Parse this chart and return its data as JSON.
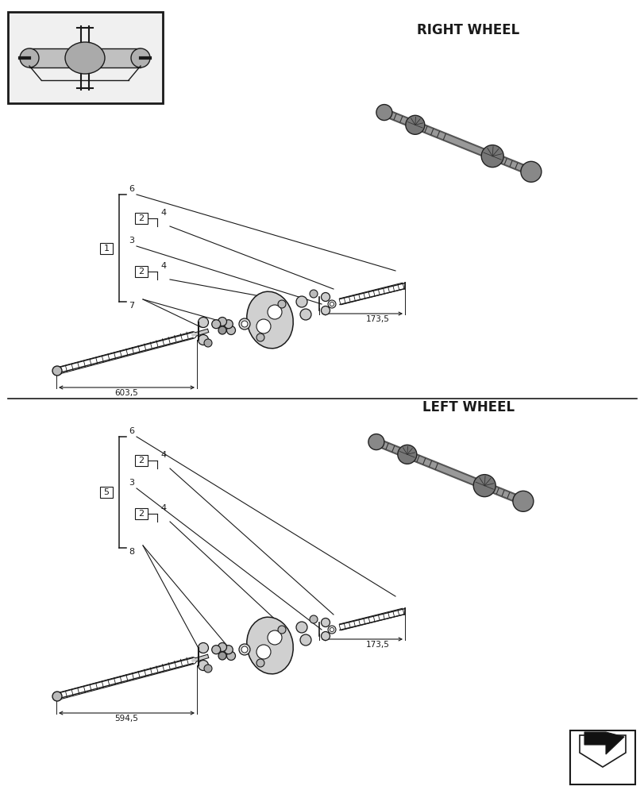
{
  "bg_color": "#ffffff",
  "line_color": "#1a1a1a",
  "title_right": "RIGHT WHEEL",
  "title_left": "LEFT WHEEL",
  "right": {
    "bracket_label": "1",
    "label6": "6",
    "label4a": "4",
    "label2a": "2",
    "label3": "3",
    "label4b": "4",
    "label2b": "2",
    "label7": "7",
    "dim_long": "603,5",
    "dim_short": "173,5"
  },
  "left": {
    "bracket_label": "5",
    "label6": "6",
    "label4a": "4",
    "label2a": "2",
    "label3": "3",
    "label4b": "4",
    "label2b": "2",
    "label8": "8",
    "dim_long": "594,5",
    "dim_short": "173,5"
  }
}
